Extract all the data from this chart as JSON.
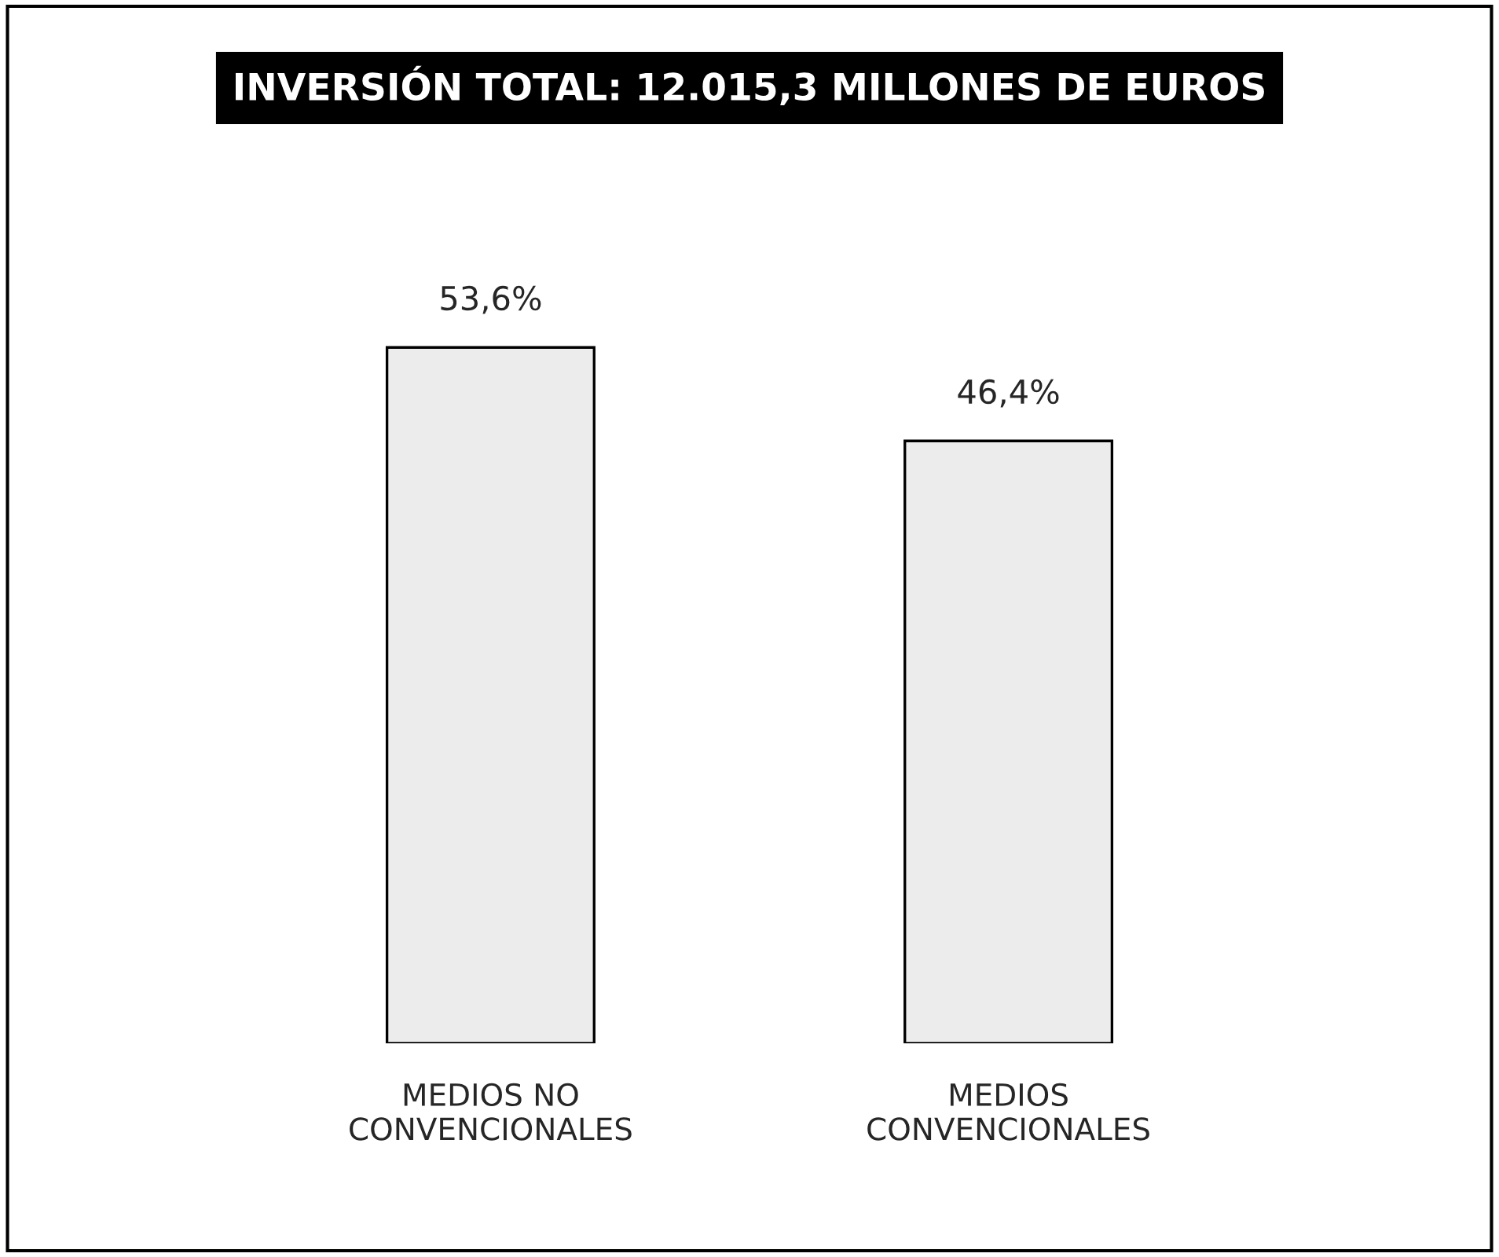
{
  "chart_data": {
    "type": "bar",
    "title": "INVERSIÓN TOTAL: 12.015,3 MILLONES DE EUROS",
    "categories": [
      "MEDIOS NO\nCONVENCIONALES",
      "MEDIOS\nCONVENCIONALES"
    ],
    "values": [
      53.6,
      46.4
    ],
    "value_labels": [
      "53,6%",
      "46,4%"
    ],
    "color": "#ececec",
    "grid": false,
    "legend": false
  }
}
